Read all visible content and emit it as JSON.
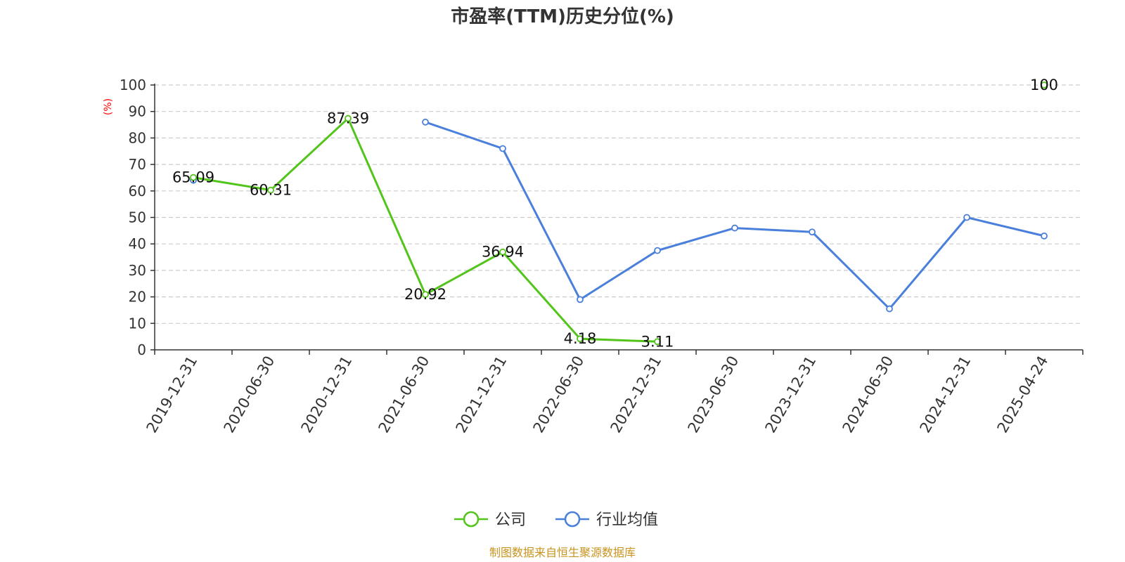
{
  "colors": {
    "company": "#52c41a",
    "industry": "#4a7fdb",
    "axis": "#333333",
    "grid": "#cccccc",
    "ylabel": "#ff0000",
    "source": "#c8941e"
  },
  "source_text": "制图数据来自恒生聚源数据库",
  "chart_data": {
    "type": "line",
    "title": "市盈率(TTM)历史分位(%)",
    "xlabel": "",
    "ylabel": "(%)",
    "ylim": [
      0,
      100
    ],
    "yticks": [
      0,
      10,
      20,
      30,
      40,
      50,
      60,
      70,
      80,
      90,
      100
    ],
    "grid": true,
    "legend_position": "bottom-center",
    "categories": [
      "2019-12-31",
      "2020-06-30",
      "2020-12-31",
      "2021-06-30",
      "2021-12-31",
      "2022-06-30",
      "2022-12-31",
      "2023-06-30",
      "2023-12-31",
      "2024-06-30",
      "2024-12-31",
      "2025-04-24"
    ],
    "series": [
      {
        "name": "公司",
        "color": "#52c41a",
        "values": [
          65.09,
          60.31,
          87.39,
          20.92,
          36.94,
          4.18,
          3.11,
          null,
          null,
          null,
          null,
          100
        ],
        "labels": [
          "65.09",
          "60.31",
          "87.39",
          "20.92",
          "36.94",
          "4.18",
          "3.11",
          null,
          null,
          null,
          null,
          "100"
        ]
      },
      {
        "name": "行业均值",
        "color": "#4a7fdb",
        "values": [
          64,
          null,
          null,
          86,
          76,
          19,
          37.5,
          46,
          44.5,
          15.5,
          50,
          43
        ],
        "labels": null
      }
    ]
  }
}
